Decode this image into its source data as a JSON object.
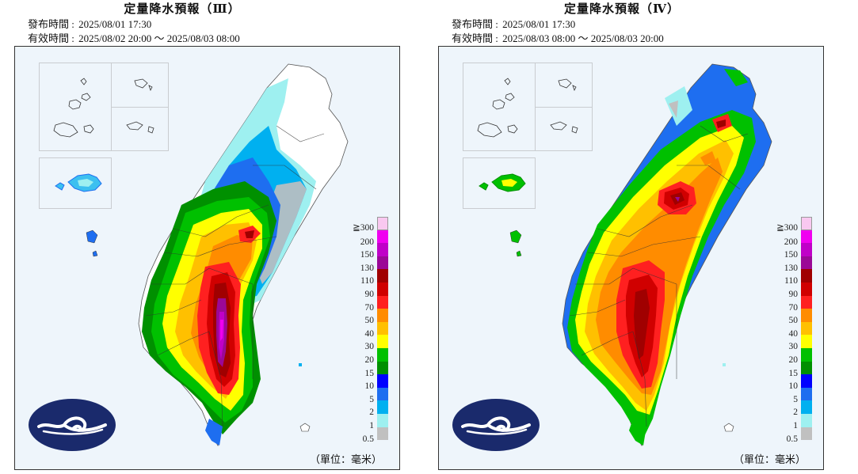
{
  "panels": [
    {
      "title": "定量降水預報（Ⅲ）",
      "issue_label": "發布時間 :",
      "issue_time": "2025/08/01 17:30",
      "valid_label": "有效時間 :",
      "valid_time": "2025/08/02 20:00 ～ 2025/08/03 08:00",
      "unit": "（單位：毫米）",
      "max_band": "above 300 in southern mountains (purple/magenta core)"
    },
    {
      "title": "定量降水預報（Ⅳ）",
      "issue_label": "發布時間 :",
      "issue_time": "2025/08/01 17:30",
      "valid_label": "有效時間 :",
      "valid_time": "2025/08/03 08:00 ～ 2025/08/03 20:00",
      "unit": "（單位：毫米）",
      "max_band": "130-150 in central and southern mountains (dark red/purple core)"
    }
  ],
  "legend": {
    "levels": [
      "≧300",
      "200",
      "150",
      "130",
      "110",
      "90",
      "70",
      "50",
      "40",
      "30",
      "20",
      "15",
      "10",
      "5",
      "2",
      "1",
      "0.5"
    ],
    "colors": [
      "#f9c8f0",
      "#f000f0",
      "#c000c8",
      "#9b0896",
      "#a00000",
      "#d00000",
      "#ff2020",
      "#ff8c00",
      "#ffc000",
      "#ffff00",
      "#00c000",
      "#009000",
      "#0000ff",
      "#1e6ef0",
      "#00b0f0",
      "#9ef0f0",
      "#c0c0c0"
    ]
  },
  "colors": {
    "background": "#eef5fb",
    "logo": "#1a2a6c"
  },
  "icons": {
    "agency_logo": "cwa-cloud-logo-icon"
  }
}
